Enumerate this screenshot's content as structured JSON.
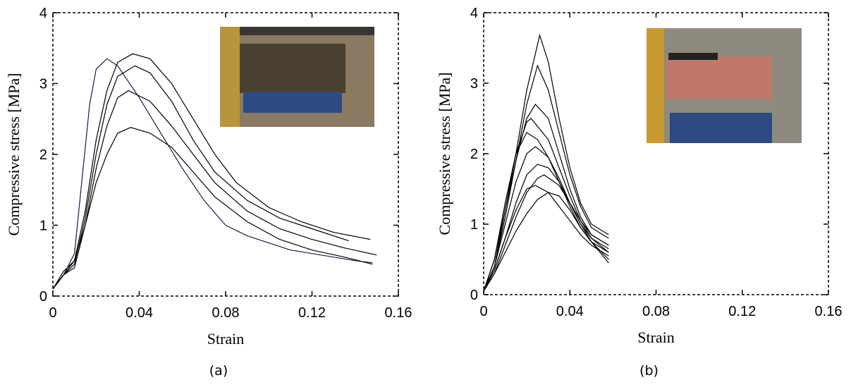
{
  "chart_data": [
    {
      "type": "line",
      "label": "(a)",
      "xlabel": "Strain",
      "ylabel": "Compressive stress [MPa]",
      "xlim": [
        0,
        0.16
      ],
      "ylim": [
        0,
        4
      ],
      "xticks": [
        0,
        0.04,
        0.08,
        0.12,
        0.16
      ],
      "yticks": [
        0,
        1,
        2,
        3,
        4
      ],
      "series": [
        {
          "color": "#1a1a4a",
          "x": [
            0,
            0.005,
            0.01,
            0.013,
            0.017,
            0.02,
            0.025,
            0.03,
            0.04,
            0.05,
            0.06,
            0.07,
            0.08,
            0.09,
            0.1,
            0.11,
            0.12,
            0.13,
            0.14,
            0.148
          ],
          "values": [
            0.1,
            0.3,
            0.6,
            1.5,
            2.7,
            3.2,
            3.35,
            3.25,
            2.8,
            2.3,
            1.8,
            1.35,
            1.0,
            0.85,
            0.75,
            0.65,
            0.6,
            0.55,
            0.5,
            0.47
          ]
        },
        {
          "color": "#000000",
          "x": [
            0,
            0.005,
            0.01,
            0.015,
            0.02,
            0.025,
            0.03,
            0.037,
            0.045,
            0.055,
            0.065,
            0.075,
            0.085,
            0.1,
            0.115,
            0.13,
            0.147
          ],
          "values": [
            0.1,
            0.35,
            0.5,
            1.2,
            2.2,
            2.9,
            3.3,
            3.42,
            3.35,
            3.0,
            2.5,
            2.0,
            1.6,
            1.25,
            1.05,
            0.9,
            0.8
          ]
        },
        {
          "color": "#000000",
          "x": [
            0,
            0.005,
            0.01,
            0.015,
            0.02,
            0.025,
            0.03,
            0.038,
            0.045,
            0.055,
            0.065,
            0.075,
            0.09,
            0.105,
            0.12,
            0.137
          ],
          "values": [
            0.1,
            0.3,
            0.45,
            1.1,
            2.0,
            2.7,
            3.1,
            3.25,
            3.15,
            2.75,
            2.2,
            1.75,
            1.35,
            1.1,
            0.95,
            0.78
          ]
        },
        {
          "color": "#000000",
          "x": [
            0,
            0.005,
            0.01,
            0.015,
            0.02,
            0.025,
            0.03,
            0.035,
            0.045,
            0.055,
            0.065,
            0.075,
            0.09,
            0.105,
            0.12,
            0.135,
            0.15
          ],
          "values": [
            0.1,
            0.3,
            0.4,
            1.0,
            1.8,
            2.4,
            2.8,
            2.9,
            2.75,
            2.4,
            2.0,
            1.6,
            1.2,
            0.95,
            0.8,
            0.68,
            0.58
          ]
        },
        {
          "color": "#000000",
          "x": [
            0,
            0.005,
            0.01,
            0.015,
            0.02,
            0.025,
            0.03,
            0.036,
            0.045,
            0.055,
            0.065,
            0.075,
            0.09,
            0.105,
            0.12,
            0.135,
            0.148
          ],
          "values": [
            0.1,
            0.3,
            0.5,
            1.0,
            1.6,
            2.0,
            2.3,
            2.38,
            2.3,
            2.1,
            1.75,
            1.4,
            1.05,
            0.8,
            0.65,
            0.55,
            0.45
          ]
        }
      ]
    },
    {
      "type": "line",
      "label": "(b)",
      "xlabel": "Strain",
      "ylabel": "Compressive stress [MPa]",
      "xlim": [
        0,
        0.16
      ],
      "ylim": [
        0,
        4
      ],
      "xticks": [
        0,
        0.04,
        0.08,
        0.12,
        0.16
      ],
      "yticks": [
        0,
        1,
        2,
        3,
        4
      ],
      "series": [
        {
          "color": "#000000",
          "x": [
            0,
            0.005,
            0.01,
            0.015,
            0.02,
            0.026,
            0.03,
            0.035,
            0.04,
            0.045,
            0.05,
            0.058
          ],
          "values": [
            0.05,
            0.4,
            1.2,
            2.0,
            2.9,
            3.68,
            3.3,
            2.5,
            1.8,
            1.3,
            1.0,
            0.85
          ]
        },
        {
          "color": "#000000",
          "x": [
            0,
            0.005,
            0.01,
            0.015,
            0.02,
            0.025,
            0.03,
            0.035,
            0.04,
            0.045,
            0.05,
            0.058
          ],
          "values": [
            0.05,
            0.4,
            1.1,
            1.9,
            2.7,
            3.25,
            2.9,
            2.3,
            1.7,
            1.25,
            0.95,
            0.8
          ]
        },
        {
          "color": "#000000",
          "x": [
            0,
            0.005,
            0.01,
            0.015,
            0.02,
            0.024,
            0.03,
            0.035,
            0.04,
            0.045,
            0.05,
            0.058
          ],
          "values": [
            0.05,
            0.5,
            1.2,
            1.9,
            2.5,
            2.7,
            2.5,
            2.0,
            1.5,
            1.1,
            0.85,
            0.7
          ]
        },
        {
          "color": "#000000",
          "x": [
            0,
            0.005,
            0.01,
            0.015,
            0.02,
            0.022,
            0.03,
            0.035,
            0.04,
            0.045,
            0.05,
            0.058
          ],
          "values": [
            0.05,
            0.5,
            1.3,
            2.0,
            2.45,
            2.5,
            2.2,
            1.8,
            1.4,
            1.05,
            0.8,
            0.65
          ]
        },
        {
          "color": "#000000",
          "x": [
            0,
            0.005,
            0.01,
            0.015,
            0.02,
            0.025,
            0.03,
            0.035,
            0.04,
            0.045,
            0.05,
            0.058
          ],
          "values": [
            0.05,
            0.5,
            1.3,
            2.0,
            2.3,
            2.2,
            1.95,
            1.6,
            1.25,
            0.95,
            0.75,
            0.6
          ]
        },
        {
          "color": "#000000",
          "x": [
            0,
            0.005,
            0.01,
            0.015,
            0.02,
            0.024,
            0.03,
            0.035,
            0.04,
            0.045,
            0.05,
            0.058
          ],
          "values": [
            0.05,
            0.4,
            1.0,
            1.6,
            2.0,
            2.1,
            1.95,
            1.65,
            1.3,
            1.0,
            0.75,
            0.5
          ]
        },
        {
          "color": "#000000",
          "x": [
            0,
            0.005,
            0.01,
            0.015,
            0.02,
            0.025,
            0.03,
            0.035,
            0.04,
            0.045,
            0.05,
            0.058
          ],
          "values": [
            0.05,
            0.35,
            0.8,
            1.3,
            1.7,
            1.85,
            1.8,
            1.6,
            1.3,
            1.0,
            0.8,
            0.6
          ]
        },
        {
          "color": "#000000",
          "x": [
            0,
            0.005,
            0.01,
            0.015,
            0.02,
            0.025,
            0.028,
            0.035,
            0.04,
            0.045,
            0.05,
            0.058
          ],
          "values": [
            0.05,
            0.3,
            0.7,
            1.1,
            1.45,
            1.65,
            1.7,
            1.55,
            1.3,
            1.05,
            0.85,
            0.7
          ]
        },
        {
          "color": "#000000",
          "x": [
            0,
            0.005,
            0.01,
            0.015,
            0.02,
            0.024,
            0.03,
            0.035,
            0.04,
            0.045,
            0.05,
            0.058
          ],
          "values": [
            0.05,
            0.35,
            0.8,
            1.2,
            1.5,
            1.55,
            1.45,
            1.25,
            1.05,
            0.85,
            0.7,
            0.55
          ]
        },
        {
          "color": "#000000",
          "x": [
            0,
            0.005,
            0.01,
            0.015,
            0.02,
            0.025,
            0.03,
            0.035,
            0.04,
            0.045,
            0.05,
            0.058
          ],
          "values": [
            0.05,
            0.3,
            0.6,
            0.9,
            1.15,
            1.35,
            1.45,
            1.4,
            1.2,
            0.95,
            0.75,
            0.45
          ]
        }
      ]
    }
  ]
}
